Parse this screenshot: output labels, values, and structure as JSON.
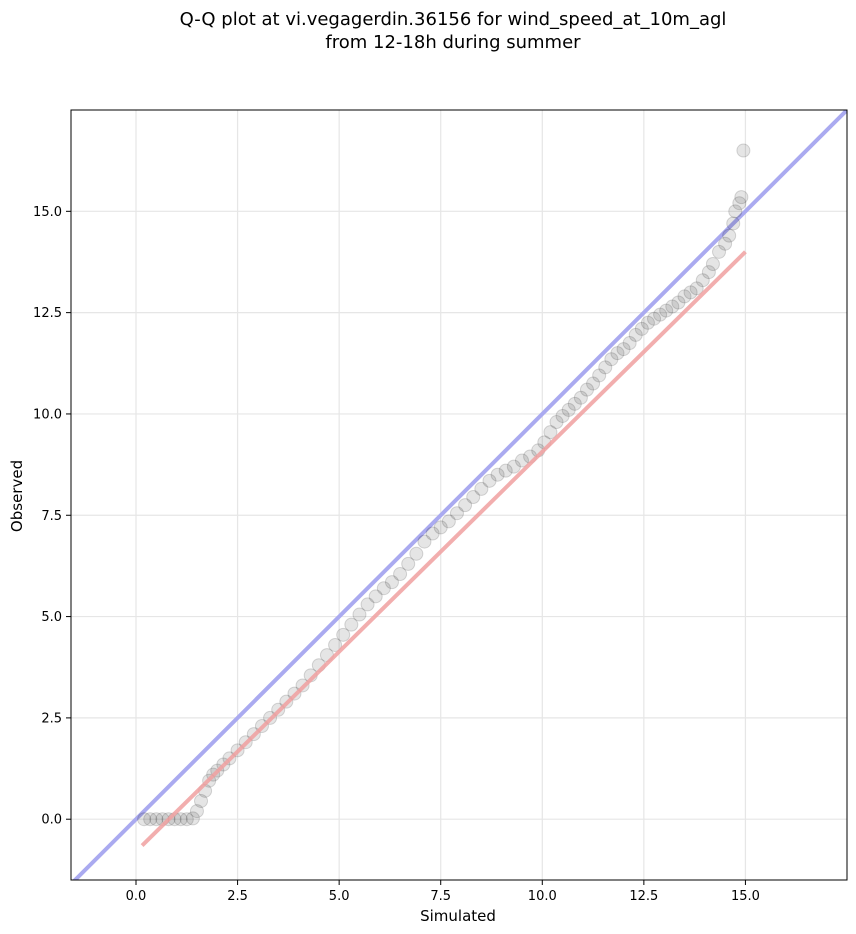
{
  "chart_data": {
    "type": "scatter",
    "title_lines": [
      "Q-Q plot at vi.vegagerdin.36156 for wind_speed_at_10m_agl",
      "from 12-18h during summer"
    ],
    "xlabel": "Simulated",
    "ylabel": "Observed",
    "xlim": [
      -1.6,
      17.5
    ],
    "ylim": [
      -1.5,
      17.5
    ],
    "xticks": [
      0.0,
      2.5,
      5.0,
      7.5,
      10.0,
      12.5,
      15.0
    ],
    "yticks": [
      0.0,
      2.5,
      5.0,
      7.5,
      10.0,
      12.5,
      15.0
    ],
    "xtick_labels": [
      "0.0",
      "2.5",
      "5.0",
      "7.5",
      "10.0",
      "12.5",
      "15.0"
    ],
    "ytick_labels": [
      "0.0",
      "2.5",
      "5.0",
      "7.5",
      "10.0",
      "12.5",
      "15.0"
    ],
    "grid": true,
    "colors": {
      "points": "#000000",
      "identity_line": "#aaaaf0",
      "fit_line": "#f0a0a0",
      "grid": "#e6e6e6"
    },
    "identity_line": {
      "x": [
        -1.6,
        17.5
      ],
      "y": [
        -1.6,
        17.5
      ]
    },
    "fit_line": {
      "x": [
        0.15,
        15.0
      ],
      "y": [
        -0.65,
        14.0
      ]
    },
    "quantiles": {
      "x": [
        0.2,
        0.35,
        0.5,
        0.65,
        0.8,
        0.95,
        1.1,
        1.25,
        1.4,
        1.5,
        1.6,
        1.7,
        1.8,
        1.9,
        2.0,
        2.15,
        2.3,
        2.5,
        2.7,
        2.9,
        3.1,
        3.3,
        3.5,
        3.7,
        3.9,
        4.1,
        4.3,
        4.5,
        4.7,
        4.9,
        5.1,
        5.3,
        5.5,
        5.7,
        5.9,
        6.1,
        6.3,
        6.5,
        6.7,
        6.9,
        7.1,
        7.3,
        7.5,
        7.7,
        7.9,
        8.1,
        8.3,
        8.5,
        8.7,
        8.9,
        9.1,
        9.3,
        9.5,
        9.7,
        9.9,
        10.05,
        10.2,
        10.35,
        10.5,
        10.65,
        10.8,
        10.95,
        11.1,
        11.25,
        11.4,
        11.55,
        11.7,
        11.85,
        12.0,
        12.15,
        12.3,
        12.45,
        12.6,
        12.75,
        12.9,
        13.05,
        13.2,
        13.35,
        13.5,
        13.65,
        13.8,
        13.95,
        14.1,
        14.2,
        14.35,
        14.5,
        14.6,
        14.7,
        14.75,
        14.85,
        14.9,
        14.95
      ],
      "y": [
        0.0,
        0.0,
        0.0,
        0.0,
        0.0,
        0.0,
        0.0,
        0.0,
        0.02,
        0.2,
        0.45,
        0.7,
        0.95,
        1.1,
        1.2,
        1.35,
        1.5,
        1.7,
        1.9,
        2.1,
        2.3,
        2.5,
        2.7,
        2.9,
        3.1,
        3.3,
        3.55,
        3.8,
        4.05,
        4.3,
        4.55,
        4.8,
        5.05,
        5.3,
        5.5,
        5.7,
        5.85,
        6.05,
        6.3,
        6.55,
        6.85,
        7.05,
        7.2,
        7.35,
        7.55,
        7.75,
        7.95,
        8.15,
        8.35,
        8.5,
        8.6,
        8.7,
        8.85,
        8.95,
        9.1,
        9.3,
        9.55,
        9.8,
        9.95,
        10.1,
        10.25,
        10.4,
        10.6,
        10.75,
        10.95,
        11.15,
        11.35,
        11.5,
        11.6,
        11.75,
        11.95,
        12.1,
        12.25,
        12.35,
        12.45,
        12.55,
        12.65,
        12.75,
        12.9,
        13.0,
        13.1,
        13.3,
        13.5,
        13.7,
        14.0,
        14.2,
        14.4,
        14.7,
        15.0,
        15.2,
        15.35,
        16.5
      ]
    }
  }
}
